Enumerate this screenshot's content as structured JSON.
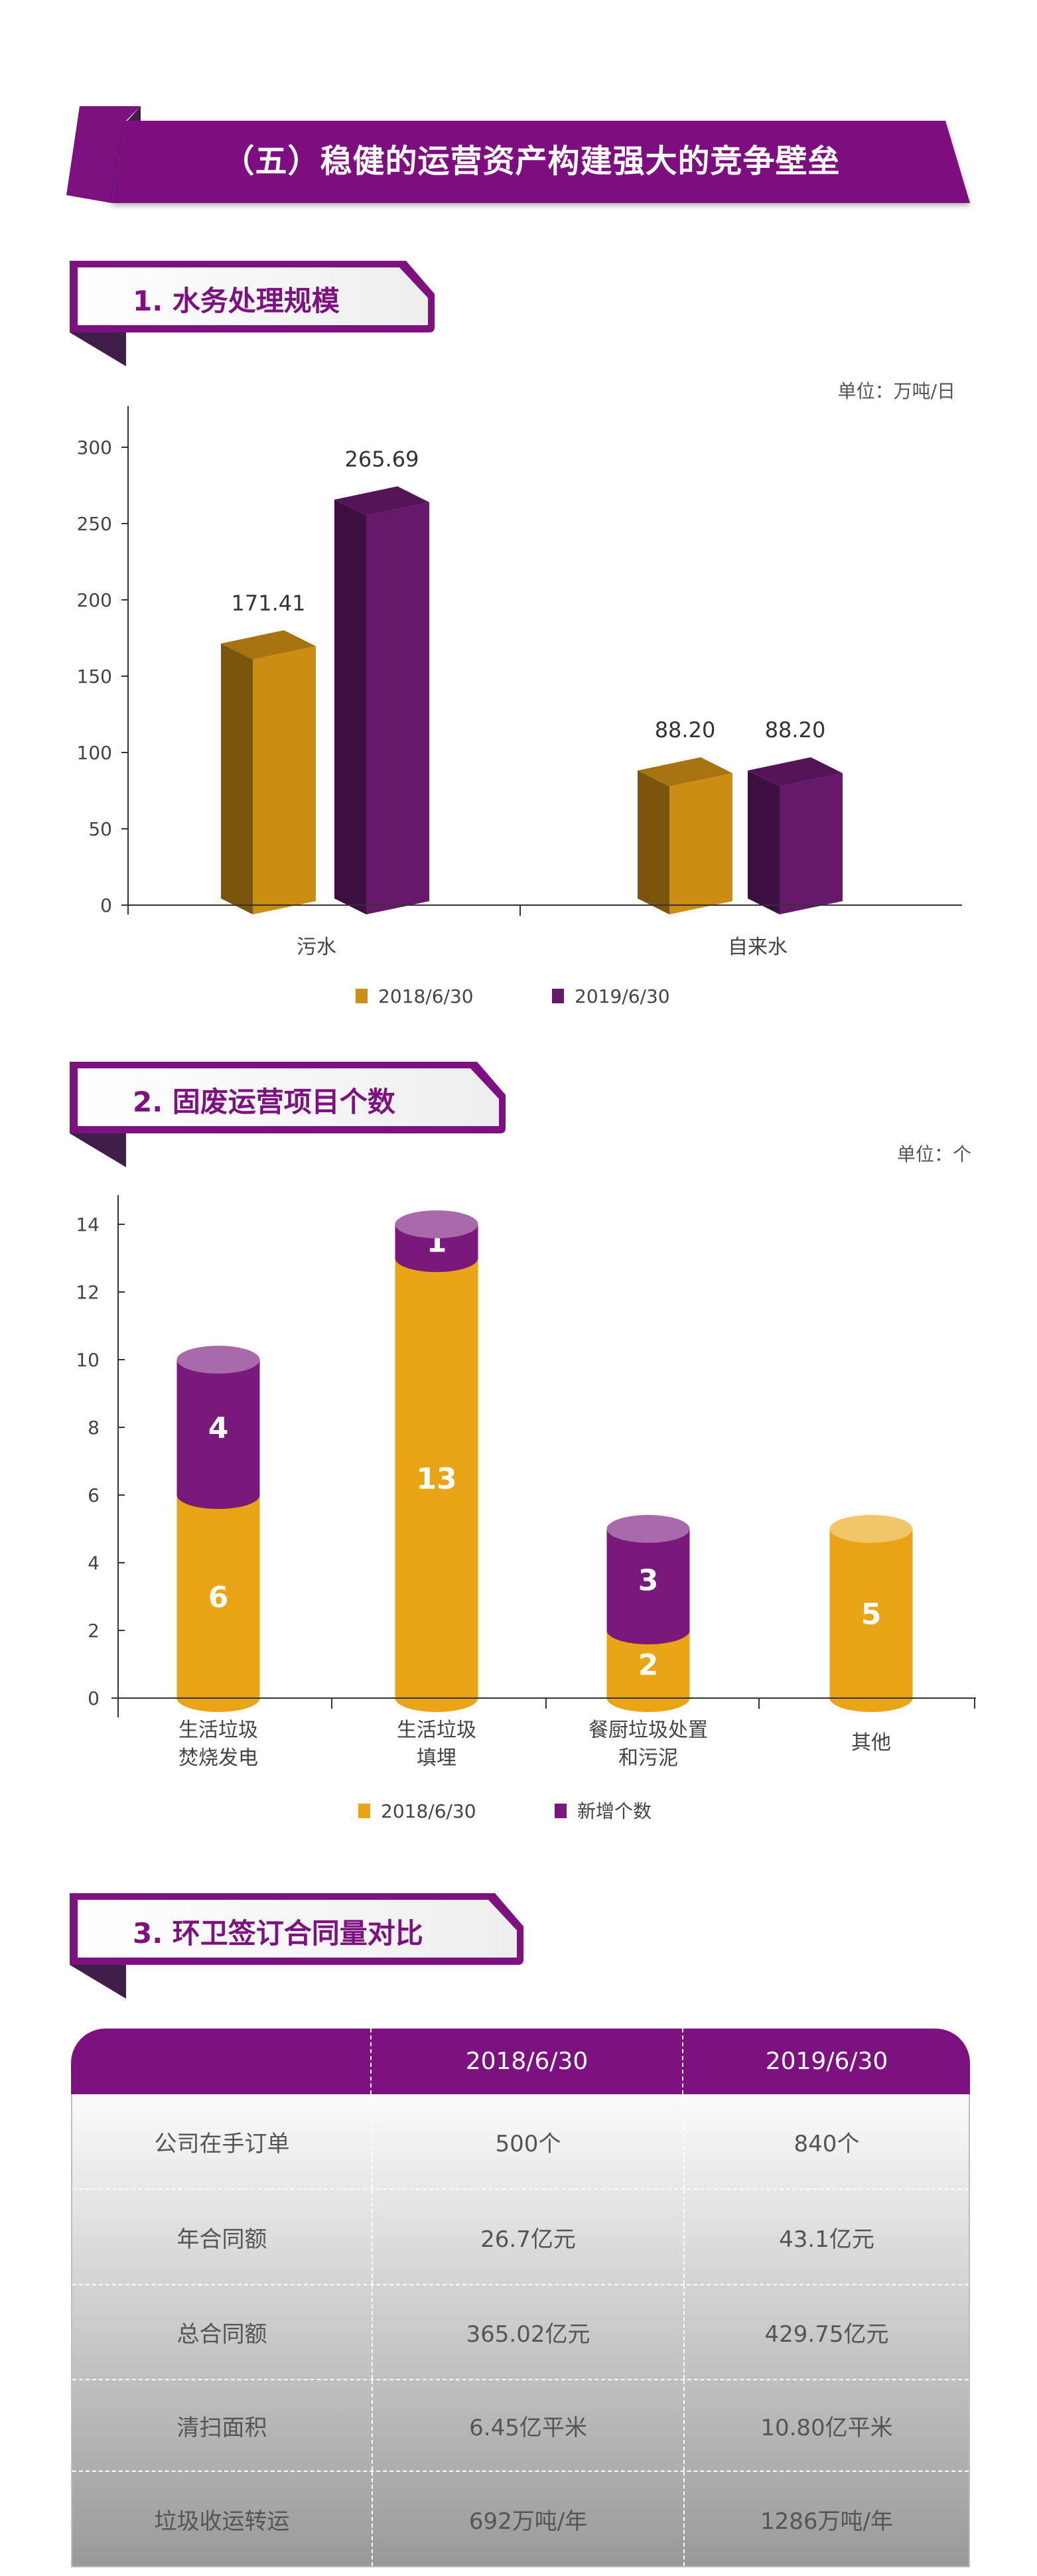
{
  "banner": {
    "title": "（五）稳健的运营资产构建强大的竞争壁垒"
  },
  "sections": [
    {
      "title": "1. 水务处理规模",
      "unit": "单位：万吨/日"
    },
    {
      "title": "2. 固废运营项目个数",
      "unit": "单位：个"
    },
    {
      "title": "3. 环卫签订合同量对比"
    }
  ],
  "colors": {
    "brand_purple": "#7E1180",
    "dark_purple": "#3F1F4A",
    "gold": "#EAA516"
  },
  "chart_data": [
    {
      "type": "bar",
      "style": "3d-column",
      "categories": [
        "污水",
        "自来水"
      ],
      "series": [
        {
          "name": "2018/6/30",
          "values": [
            171.41,
            88.2
          ],
          "labels": [
            "171.41",
            "88.20"
          ],
          "color": "#CC8E12"
        },
        {
          "name": "2019/6/30",
          "values": [
            265.69,
            88.2
          ],
          "labels": [
            "265.69",
            "88.20"
          ],
          "color": "#66186A"
        }
      ],
      "ylim": [
        0,
        300
      ],
      "yticks": [
        0,
        50,
        100,
        150,
        200,
        250,
        300
      ],
      "grid": false,
      "legend": "bottom"
    },
    {
      "type": "bar",
      "style": "stacked-cylinder",
      "categories": [
        [
          "生活垃圾",
          "焚烧发电"
        ],
        [
          "生活垃圾",
          "填埋"
        ],
        [
          "餐厨垃圾处置",
          "和污泥"
        ],
        [
          "其他"
        ]
      ],
      "series": [
        {
          "name": "2018/6/30",
          "values": [
            6,
            13,
            2,
            5
          ],
          "color": "#EAA516"
        },
        {
          "name": "新增个数",
          "values": [
            4,
            1,
            3,
            0
          ],
          "color": "#79197C"
        }
      ],
      "ylim": [
        0,
        14
      ],
      "yticks": [
        0,
        2,
        4,
        6,
        8,
        10,
        12,
        14
      ],
      "grid": false,
      "legend": "bottom"
    }
  ],
  "table": {
    "headers": [
      "",
      "2018/6/30",
      "2019/6/30"
    ],
    "rows": [
      [
        "公司在手订单",
        "500个",
        "840个"
      ],
      [
        "年合同额",
        "26.7亿元",
        "43.1亿元"
      ],
      [
        "总合同额",
        "365.02亿元",
        "429.75亿元"
      ],
      [
        "清扫面积",
        "6.45亿平米",
        "10.80亿平米"
      ],
      [
        "垃圾收运转运",
        "692万吨/年",
        "1286万吨/年"
      ]
    ]
  }
}
